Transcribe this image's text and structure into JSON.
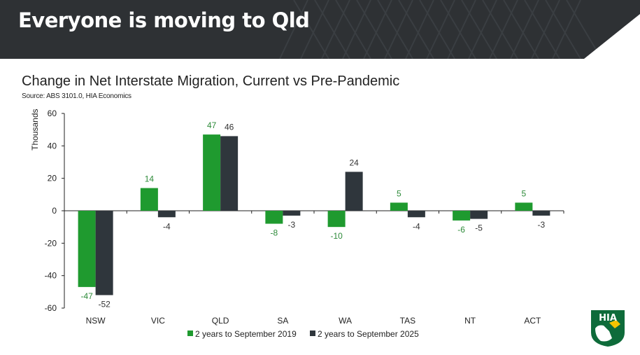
{
  "header": {
    "title": "Everyone is moving to Qld"
  },
  "chart": {
    "title": "Change in Net Interstate Migration, Current vs Pre-Pandemic",
    "source": "Source: ABS 3101.0, HIA Economics"
  },
  "logo": {
    "text": "HIA",
    "icon": "hia-logo-icon"
  },
  "colors": {
    "header_bg": "#2e3134",
    "series_2019": "#1f9a2f",
    "series_2025": "#2f363c",
    "label_2019": "#2e8b3a",
    "label_2025": "#333333",
    "logo_green": "#0e6b3a",
    "logo_yellow": "#f6c400"
  },
  "chart_data": {
    "type": "bar",
    "categories": [
      "NSW",
      "VIC",
      "QLD",
      "SA",
      "WA",
      "TAS",
      "NT",
      "ACT"
    ],
    "series": [
      {
        "name": "2 years to September 2019",
        "values": [
          -47,
          14,
          47,
          -8,
          -10,
          5,
          -6,
          5
        ]
      },
      {
        "name": "2 years to September 2025",
        "values": [
          -52,
          -4,
          46,
          -3,
          24,
          -4,
          -5,
          -3
        ]
      }
    ],
    "ylabel": "Thousands",
    "ylim": [
      -60,
      60
    ],
    "yticks": [
      60,
      40,
      20,
      0,
      -20,
      -40,
      -60
    ],
    "grid": false,
    "legend_position": "bottom"
  }
}
